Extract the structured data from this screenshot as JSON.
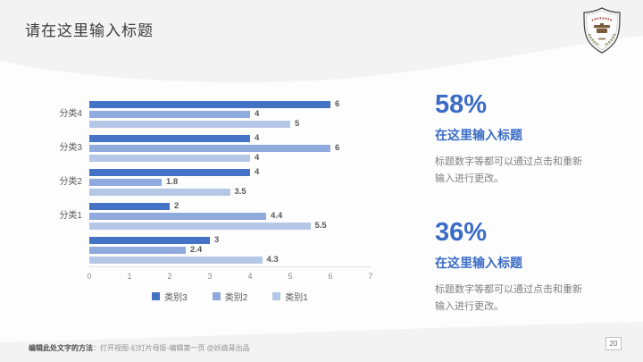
{
  "slide": {
    "title": "请在这里输入标题",
    "page_number": "20",
    "footer": {
      "method_label": "编辑此处文字的方法",
      "instructions": "：打开视图-幻灯片母版-编辑第一页 @妖娆哥出品"
    }
  },
  "chart_data": {
    "type": "bar",
    "orientation": "horizontal",
    "categories": [
      "分类4",
      "分类3",
      "分类2",
      "分类1",
      ""
    ],
    "series": [
      {
        "name": "类别3",
        "color": "#4472C4",
        "values": [
          6,
          4,
          4,
          2,
          3
        ]
      },
      {
        "name": "类别2",
        "color": "#8FAADC",
        "values": [
          4,
          6,
          1.8,
          4.4,
          2.4
        ]
      },
      {
        "name": "类别1",
        "color": "#B4C7E7",
        "values": [
          5,
          4,
          3.5,
          5.5,
          4.3
        ]
      }
    ],
    "xlim": [
      0,
      7
    ],
    "x_ticks": [
      "0",
      "1",
      "2",
      "3",
      "4",
      "5",
      "6",
      "7"
    ],
    "grid": false,
    "legend_position": "bottom"
  },
  "stats": [
    {
      "value": "58%",
      "title": "在这里输入标题",
      "desc": "标题数字等都可以通过点击和重新输入进行更改。"
    },
    {
      "value": "36%",
      "title": "在这里输入标题",
      "desc": "标题数字等都可以通过点击和重新输入进行更改。"
    }
  ],
  "colors": {
    "accent_blue": "#3a6cc6",
    "band_gray": "#f3f3f3",
    "title_text": "#3d3d3d"
  }
}
